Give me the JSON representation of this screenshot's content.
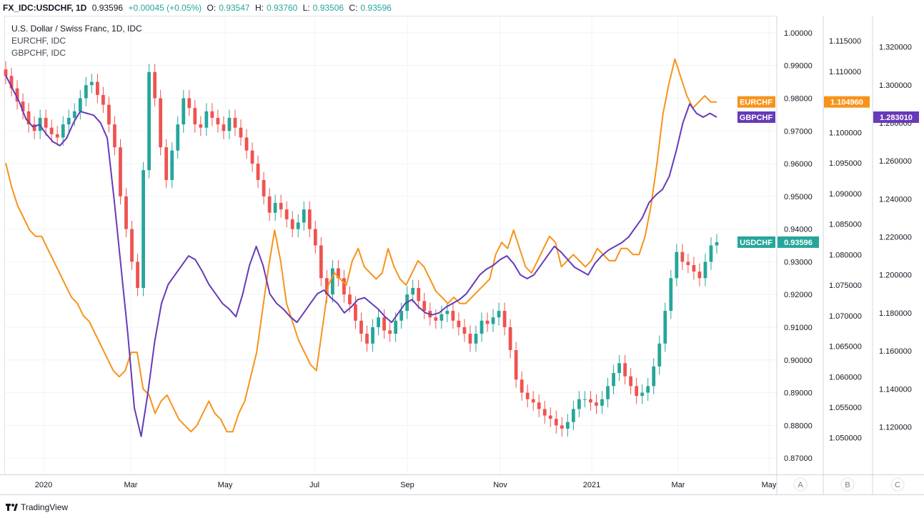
{
  "header": {
    "symbol": "FX_IDC:USDCHF, 1D",
    "last": "0.93596",
    "change": "+0.00045 (+0.05%)",
    "o_label": "O:",
    "o_value": "0.93547",
    "h_label": "H:",
    "h_value": "0.93760",
    "l_label": "L:",
    "l_value": "0.93506",
    "c_label": "C:",
    "c_value": "0.93596"
  },
  "legend": {
    "main": "U.S. Dollar / Swiss Franc, 1D, IDC",
    "s2": "EURCHF, IDC",
    "s3": "GBPCHF, IDC"
  },
  "footer": {
    "brand": "TradingView"
  },
  "colors": {
    "usdchf_up": "#26a69a",
    "usdchf_down": "#ef5350",
    "eurchf": "#f7931a",
    "gbpchf": "#673ab7"
  },
  "chart_data": {
    "type": "candlestick+line",
    "x_ticks": [
      "2020",
      "Mar",
      "May",
      "Jul",
      "Sep",
      "Nov",
      "2021",
      "Mar",
      "May"
    ],
    "axis_A": {
      "name": "A",
      "ylim": [
        0.865,
        1.005
      ],
      "ticks": [
        "1.00000",
        "0.99000",
        "0.98000",
        "0.97000",
        "0.96000",
        "0.95000",
        "0.94000",
        "0.93000",
        "0.92000",
        "0.91000",
        "0.90000",
        "0.89000",
        "0.88000",
        "0.87000"
      ]
    },
    "axis_B": {
      "name": "B",
      "ylim": [
        1.044,
        1.119
      ],
      "ticks": [
        "1.115000",
        "1.110000",
        "1.105000",
        "1.100000",
        "1.095000",
        "1.090000",
        "1.085000",
        "1.080000",
        "1.075000",
        "1.070000",
        "1.065000",
        "1.060000",
        "1.055000",
        "1.050000"
      ]
    },
    "axis_C": {
      "name": "C",
      "ylim": [
        1.095,
        1.336
      ],
      "ticks": [
        "1.320000",
        "1.300000",
        "1.280000",
        "1.260000",
        "1.240000",
        "1.220000",
        "1.200000",
        "1.180000",
        "1.160000",
        "1.140000",
        "1.120000"
      ]
    },
    "series": [
      {
        "name": "USDCHF",
        "axis": "A",
        "type": "candlestick",
        "last_label": "0.93596",
        "close": [
          0.9868,
          0.983,
          0.979,
          0.976,
          0.972,
          0.97,
          0.974,
          0.971,
          0.969,
          0.968,
          0.972,
          0.974,
          0.976,
          0.98,
          0.984,
          0.985,
          0.981,
          0.978,
          0.972,
          0.965,
          0.95,
          0.94,
          0.93,
          0.922,
          0.958,
          0.988,
          0.98,
          0.965,
          0.955,
          0.964,
          0.972,
          0.98,
          0.977,
          0.972,
          0.971,
          0.976,
          0.974,
          0.972,
          0.97,
          0.974,
          0.971,
          0.968,
          0.964,
          0.96,
          0.955,
          0.95,
          0.945,
          0.948,
          0.946,
          0.943,
          0.94,
          0.942,
          0.946,
          0.94,
          0.935,
          0.925,
          0.92,
          0.928,
          0.925,
          0.92,
          0.917,
          0.912,
          0.908,
          0.905,
          0.91,
          0.913,
          0.909,
          0.908,
          0.912,
          0.915,
          0.92,
          0.922,
          0.918,
          0.915,
          0.913,
          0.912,
          0.914,
          0.915,
          0.912,
          0.91,
          0.908,
          0.905,
          0.908,
          0.912,
          0.911,
          0.913,
          0.915,
          0.91,
          0.903,
          0.894,
          0.89,
          0.888,
          0.887,
          0.885,
          0.883,
          0.882,
          0.88,
          0.879,
          0.881,
          0.885,
          0.888,
          0.888,
          0.887,
          0.886,
          0.888,
          0.892,
          0.896,
          0.899,
          0.895,
          0.892,
          0.889,
          0.89,
          0.892,
          0.898,
          0.905,
          0.915,
          0.925,
          0.933,
          0.93,
          0.929,
          0.927,
          0.925,
          0.93,
          0.935,
          0.936
        ]
      },
      {
        "name": "EURCHF",
        "axis": "B",
        "type": "line",
        "last_label": "1.104960",
        "values": [
          1.095,
          1.091,
          1.088,
          1.086,
          1.084,
          1.083,
          1.083,
          1.081,
          1.079,
          1.077,
          1.075,
          1.073,
          1.072,
          1.07,
          1.069,
          1.067,
          1.065,
          1.063,
          1.061,
          1.06,
          1.061,
          1.064,
          1.064,
          1.058,
          1.057,
          1.054,
          1.056,
          1.057,
          1.055,
          1.053,
          1.052,
          1.051,
          1.052,
          1.054,
          1.056,
          1.054,
          1.053,
          1.051,
          1.051,
          1.054,
          1.056,
          1.06,
          1.064,
          1.071,
          1.078,
          1.084,
          1.079,
          1.072,
          1.069,
          1.066,
          1.064,
          1.062,
          1.061,
          1.068,
          1.075,
          1.077,
          1.076,
          1.075,
          1.079,
          1.081,
          1.078,
          1.077,
          1.076,
          1.077,
          1.081,
          1.078,
          1.076,
          1.075,
          1.077,
          1.079,
          1.078,
          1.076,
          1.074,
          1.073,
          1.072,
          1.073,
          1.072,
          1.072,
          1.073,
          1.074,
          1.075,
          1.076,
          1.08,
          1.082,
          1.081,
          1.084,
          1.081,
          1.078,
          1.077,
          1.079,
          1.081,
          1.083,
          1.082,
          1.078,
          1.079,
          1.08,
          1.079,
          1.078,
          1.079,
          1.081,
          1.08,
          1.079,
          1.079,
          1.081,
          1.081,
          1.08,
          1.08,
          1.083,
          1.088,
          1.095,
          1.103,
          1.108,
          1.112,
          1.109,
          1.106,
          1.104,
          1.105,
          1.106,
          1.105,
          1.105
        ]
      },
      {
        "name": "GBPCHF",
        "axis": "C",
        "type": "line",
        "last_label": "1.283010",
        "values": [
          1.305,
          1.298,
          1.291,
          1.282,
          1.278,
          1.279,
          1.274,
          1.27,
          1.268,
          1.272,
          1.28,
          1.286,
          1.285,
          1.284,
          1.28,
          1.272,
          1.24,
          1.205,
          1.17,
          1.13,
          1.115,
          1.138,
          1.165,
          1.185,
          1.195,
          1.2,
          1.205,
          1.21,
          1.208,
          1.202,
          1.195,
          1.19,
          1.185,
          1.182,
          1.178,
          1.19,
          1.205,
          1.215,
          1.205,
          1.19,
          1.185,
          1.182,
          1.178,
          1.175,
          1.18,
          1.185,
          1.19,
          1.192,
          1.188,
          1.185,
          1.18,
          1.183,
          1.187,
          1.188,
          1.185,
          1.182,
          1.178,
          1.175,
          1.18,
          1.185,
          1.187,
          1.183,
          1.18,
          1.179,
          1.18,
          1.183,
          1.185,
          1.187,
          1.19,
          1.195,
          1.2,
          1.203,
          1.205,
          1.208,
          1.21,
          1.206,
          1.2,
          1.198,
          1.2,
          1.205,
          1.21,
          1.215,
          1.212,
          1.208,
          1.204,
          1.202,
          1.2,
          1.206,
          1.21,
          1.213,
          1.215,
          1.217,
          1.22,
          1.225,
          1.23,
          1.238,
          1.242,
          1.245,
          1.252,
          1.265,
          1.28,
          1.29,
          1.285,
          1.283,
          1.285,
          1.283
        ]
      }
    ]
  }
}
